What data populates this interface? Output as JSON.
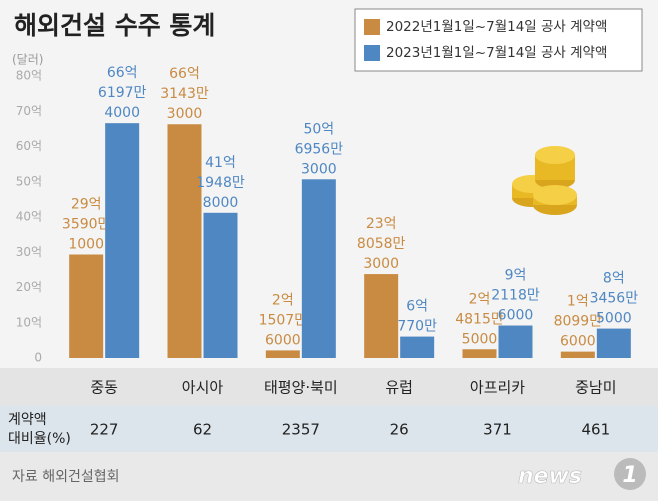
{
  "chart_data": {
    "type": "bar",
    "title": "해외건설 수주 통계",
    "unit": "(달러)",
    "categories": [
      "중동",
      "아시아",
      "태평양·북미",
      "유럽",
      "아프리카",
      "중남미"
    ],
    "series": [
      {
        "name": "2022년1월1일~7월14일 공사 계약액",
        "color": "#c98b42",
        "values": [
          29.35901,
          66.31433,
          2.15076,
          23.80583,
          2.48155,
          1.80996
        ],
        "value_labels": [
          [
            "29억",
            "3590만",
            "1000"
          ],
          [
            "66억",
            "3143만",
            "3000"
          ],
          [
            "2억",
            "1507만",
            "6000"
          ],
          [
            "23억",
            "8058만",
            "3000"
          ],
          [
            "2억",
            "4815만",
            "5000"
          ],
          [
            "1억",
            "8099만",
            "6000"
          ]
        ]
      },
      {
        "name": "2023년1월1일~7월14일 공사 계약액",
        "color": "#4f87c2",
        "values": [
          66.61974,
          41.19488,
          50.69563,
          6.077,
          9.21186,
          8.34565
        ],
        "value_labels": [
          [
            "66억",
            "6197만",
            "4000"
          ],
          [
            "41억",
            "1948만",
            "8000"
          ],
          [
            "50억",
            "6956만",
            "3000"
          ],
          [
            "6억",
            "770만"
          ],
          [
            "9억",
            "2118만",
            "6000"
          ],
          [
            "8억",
            "3456만",
            "5000"
          ]
        ]
      }
    ],
    "ylim": [
      0,
      80
    ],
    "yticks": [
      0,
      {
        "value": 10,
        "label": "10억"
      },
      {
        "value": 20,
        "label": "20억"
      },
      {
        "value": 30,
        "label": "30억"
      },
      {
        "value": 40,
        "label": "40억"
      },
      {
        "value": 50,
        "label": "50억"
      },
      {
        "value": 60,
        "label": "60억"
      },
      {
        "value": 70,
        "label": "70억"
      },
      {
        "value": 80,
        "label": "80억"
      }
    ],
    "ratio": {
      "label": [
        "계약액",
        "대비율(%)"
      ],
      "values": [
        227,
        62,
        2357,
        26,
        371,
        461
      ]
    },
    "source": "자료  해외건설협회",
    "logo": [
      "news",
      "1"
    ]
  }
}
